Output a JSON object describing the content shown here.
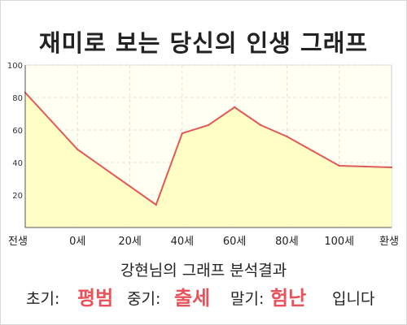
{
  "page": {
    "title": "재미로 보는 당신의 인생 그래프",
    "analysis_title": "강현님의 그래프 분석결과",
    "early_label": "초기:",
    "early_value": "평범",
    "mid_label": "중기:",
    "mid_value": "출세",
    "late_label": "말기:",
    "late_value": "험난",
    "suffix": "입니다",
    "accent_color": "#e8525a"
  },
  "chart_data": {
    "type": "area",
    "title": "재미로 보는 당신의 인생 그래프",
    "xlabel": "",
    "ylabel": "",
    "x_ticks": [
      "전생",
      "0세",
      "20세",
      "40세",
      "60세",
      "80세",
      "100세",
      "환생"
    ],
    "x": [
      0,
      2,
      5,
      6,
      7,
      8,
      9,
      10,
      11,
      12,
      14
    ],
    "y": [
      83,
      48,
      14,
      58,
      63,
      74,
      63,
      56,
      47,
      38,
      37
    ],
    "ylim": [
      0,
      100
    ],
    "y_ticks": [
      20,
      40,
      60,
      80,
      100
    ],
    "grid": true,
    "line_color": "#e05a5a",
    "fill_color": "#ffffc0",
    "bg_color": "#fffff2"
  }
}
